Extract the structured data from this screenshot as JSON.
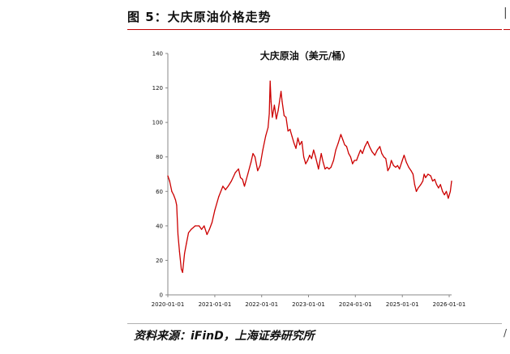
{
  "figure": {
    "label": "图 5：大庆原油价格走势",
    "source": "资料来源：iFinD，上海证券研究所"
  },
  "colors": {
    "series": "#cc0000",
    "rule": "#c00000",
    "axis": "#888888"
  },
  "chart_data": {
    "type": "line",
    "title": "大庆原油（美元/桶）",
    "xlabel": "",
    "ylabel": "",
    "x_ticks": [
      "2020-01-01",
      "2021-01-01",
      "2022-01-01",
      "2023-01-01",
      "2024-01-01",
      "2025-01-01",
      "2026-01-01"
    ],
    "y_ticks": [
      0,
      20,
      40,
      60,
      80,
      100,
      120,
      140
    ],
    "ylim": [
      0,
      140
    ],
    "xlim": [
      "2020-01-01",
      "2026-01-20"
    ],
    "grid": false,
    "legend": "none",
    "series": [
      {
        "x": [
          "2020-01-01",
          "2020-01-15",
          "2020-02-01",
          "2020-02-15",
          "2020-03-01",
          "2020-03-10",
          "2020-03-20",
          "2020-04-01",
          "2020-04-15",
          "2020-04-25",
          "2020-05-10",
          "2020-05-25",
          "2020-06-10",
          "2020-07-01",
          "2020-08-01",
          "2020-09-01",
          "2020-09-20",
          "2020-10-10",
          "2020-11-01",
          "2020-11-20",
          "2020-12-10",
          "2021-01-01",
          "2021-02-01",
          "2021-03-05",
          "2021-03-25",
          "2021-04-15",
          "2021-05-10",
          "2021-06-10",
          "2021-07-05",
          "2021-07-20",
          "2021-08-05",
          "2021-08-20",
          "2021-09-15",
          "2021-10-10",
          "2021-10-25",
          "2021-11-10",
          "2021-12-01",
          "2021-12-20",
          "2022-01-10",
          "2022-02-01",
          "2022-02-20",
          "2022-03-01",
          "2022-03-08",
          "2022-03-15",
          "2022-03-25",
          "2022-04-10",
          "2022-04-25",
          "2022-05-10",
          "2022-06-01",
          "2022-06-10",
          "2022-06-25",
          "2022-07-10",
          "2022-07-25",
          "2022-08-10",
          "2022-08-25",
          "2022-09-10",
          "2022-09-25",
          "2022-10-10",
          "2022-10-25",
          "2022-11-10",
          "2022-11-25",
          "2022-12-10",
          "2022-12-25",
          "2023-01-10",
          "2023-01-25",
          "2023-02-10",
          "2023-02-25",
          "2023-03-10",
          "2023-03-20",
          "2023-04-10",
          "2023-04-25",
          "2023-05-10",
          "2023-05-25",
          "2023-06-10",
          "2023-06-25",
          "2023-07-15",
          "2023-08-01",
          "2023-08-20",
          "2023-09-10",
          "2023-09-25",
          "2023-10-10",
          "2023-10-25",
          "2023-11-10",
          "2023-11-25",
          "2023-12-10",
          "2023-12-25",
          "2024-01-10",
          "2024-01-25",
          "2024-02-10",
          "2024-02-25",
          "2024-03-15",
          "2024-04-05",
          "2024-04-20",
          "2024-05-10",
          "2024-06-01",
          "2024-06-20",
          "2024-07-10",
          "2024-07-25",
          "2024-08-10",
          "2024-08-25",
          "2024-09-10",
          "2024-09-25",
          "2024-10-07",
          "2024-10-25",
          "2024-11-10",
          "2024-11-25",
          "2024-12-10",
          "2025-01-01",
          "2025-01-15",
          "2025-02-01",
          "2025-02-20",
          "2025-03-10",
          "2025-03-25",
          "2025-04-07",
          "2025-04-20",
          "2025-05-05",
          "2025-05-25",
          "2025-06-10",
          "2025-06-20",
          "2025-07-01",
          "2025-07-20",
          "2025-08-10",
          "2025-08-25",
          "2025-09-10",
          "2025-09-25",
          "2025-10-10",
          "2025-10-25",
          "2025-11-10",
          "2025-11-25",
          "2025-12-10",
          "2025-12-25",
          "2026-01-10",
          "2026-01-20"
        ],
        "values": [
          69,
          66,
          60,
          58,
          55,
          52,
          35,
          25,
          15,
          13,
          24,
          30,
          36,
          38,
          40,
          40,
          38,
          40,
          35,
          38,
          42,
          49,
          57,
          63,
          61,
          63,
          66,
          71,
          73,
          68,
          67,
          63,
          70,
          77,
          82,
          80,
          72,
          75,
          84,
          92,
          97,
          105,
          124,
          112,
          103,
          110,
          102,
          107,
          118,
          112,
          104,
          103,
          95,
          96,
          92,
          88,
          85,
          91,
          87,
          89,
          80,
          76,
          78,
          81,
          79,
          84,
          80,
          76,
          73,
          82,
          77,
          73,
          74,
          73,
          74,
          78,
          84,
          88,
          93,
          90,
          87,
          86,
          82,
          80,
          76,
          78,
          78,
          81,
          84,
          82,
          86,
          89,
          86,
          83,
          81,
          84,
          86,
          82,
          80,
          79,
          72,
          74,
          78,
          75,
          74,
          75,
          73,
          78,
          81,
          77,
          74,
          72,
          70,
          64,
          60,
          62,
          64,
          66,
          70,
          68,
          70,
          69,
          66,
          67,
          64,
          62,
          64,
          60,
          58,
          60,
          56,
          60,
          66
        ]
      }
    ]
  }
}
